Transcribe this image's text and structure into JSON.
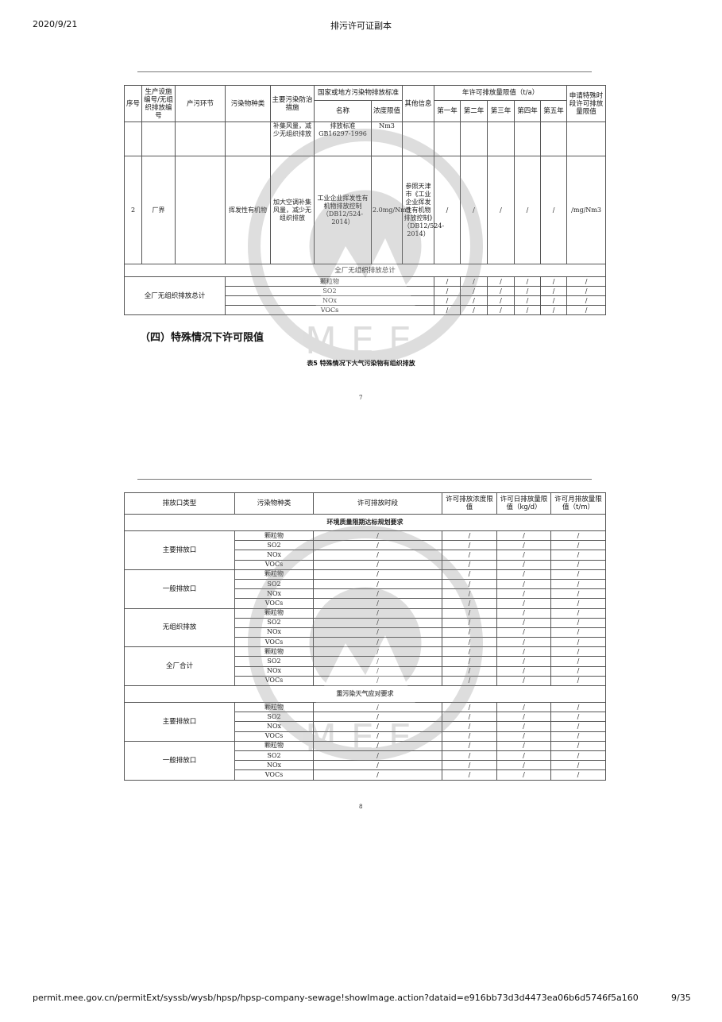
{
  "browser": {
    "date": "2020/9/21",
    "title": "排污许可证副本",
    "url": "permit.mee.gov.cn/permitExt/syssb/wysb/hpsp/hpsp-company-sewage!showImage.action?dataid=e916bb73d3d4473ea06b6d5746f5a160",
    "page": "9/35"
  },
  "watermark": {
    "text": "MEE",
    "color": "#9a9a9a"
  },
  "table1": {
    "headers": {
      "seq": "序号",
      "facility": "生产设施编号/无组织排放编号",
      "stage": "产污环节",
      "pollutant": "污染物种类",
      "measures": "主要污染防治措施",
      "standard": "国家或地方污染物排放标准",
      "std_name": "名称",
      "std_limit": "浓度限值",
      "other": "其他信息",
      "annual": "年许可排放量限值（t/a）",
      "years": [
        "第一年",
        "第二年",
        "第三年",
        "第四年",
        "第五年"
      ],
      "special": "申请特殊时段许可排放量限值"
    },
    "row_partial": {
      "measures": "补集风量，减少无组织排放",
      "std_name": "排放标准GB16297-1996",
      "std_limit": "Nm3"
    },
    "row2": {
      "seq": "2",
      "facility": "厂界",
      "stage": "",
      "pollutant": "挥发性有机物",
      "measures": "加大空调补集风量，减少无组织排放",
      "std_name": "工业企业挥发性有机物排放控制（DB12/524-2014）",
      "std_limit": "2.0mg/Nm3",
      "other": "参照天津市《工业企业挥发性有机物排放控制》（DB12/524-2014）",
      "years": [
        "/",
        "/",
        "/",
        "/",
        "/"
      ],
      "special": "/mg/Nm3"
    },
    "total_section": "全厂无组织排放总计",
    "total_label": "全厂无组织排放总计",
    "total_rows": [
      {
        "pollutant": "颗粒物",
        "values": [
          "/",
          "/",
          "/",
          "/",
          "/",
          "/"
        ]
      },
      {
        "pollutant": "SO2",
        "values": [
          "/",
          "/",
          "/",
          "/",
          "/",
          "/"
        ]
      },
      {
        "pollutant": "NOx",
        "values": [
          "/",
          "/",
          "/",
          "/",
          "/",
          "/"
        ]
      },
      {
        "pollutant": "VOCs",
        "values": [
          "/",
          "/",
          "/",
          "/",
          "/",
          "/"
        ]
      }
    ]
  },
  "section_heading": "（四）特殊情况下许可限值",
  "table5_caption": "表5  特殊情况下大气污染物有组织排放",
  "page7": "7",
  "table2": {
    "headers": [
      "排放口类型",
      "污染物种类",
      "许可排放时段",
      "许可排放浓度限值",
      "许可日排放量限值（kg/d）",
      "许可月排放量限值（t/m）"
    ],
    "sections": [
      {
        "title": "环境质量限期达标规划要求",
        "groups": [
          {
            "type": "主要排放口",
            "pollutants": [
              "颗粒物",
              "SO2",
              "NOx",
              "VOCs"
            ]
          },
          {
            "type": "一般排放口",
            "pollutants": [
              "颗粒物",
              "SO2",
              "NOx",
              "VOCs"
            ]
          },
          {
            "type": "无组织排放",
            "pollutants": [
              "颗粒物",
              "SO2",
              "NOx",
              "VOCs"
            ]
          },
          {
            "type": "全厂合计",
            "pollutants": [
              "颗粒物",
              "SO2",
              "NOx",
              "VOCs"
            ]
          }
        ]
      },
      {
        "title": "重污染天气应对要求",
        "groups": [
          {
            "type": "主要排放口",
            "pollutants": [
              "颗粒物",
              "SO2",
              "NOx",
              "VOCs"
            ]
          },
          {
            "type": "一般排放口",
            "pollutants": [
              "颗粒物",
              "SO2",
              "NOx",
              "VOCs"
            ]
          }
        ]
      }
    ],
    "cell_value": "/"
  },
  "page8": "8"
}
